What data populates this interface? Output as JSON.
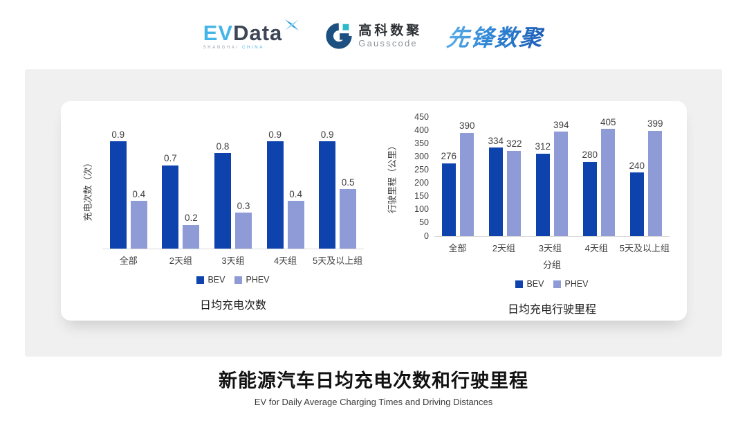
{
  "header": {
    "evdata": {
      "ev": "EV",
      "data": "Data",
      "tagline_left": "SHANGHAI",
      "tagline_right": "CHINA"
    },
    "gausscode": {
      "cn": "高科数聚",
      "en": "Gausscode"
    },
    "xianfeng": "先锋数聚"
  },
  "colors": {
    "bev": "#0e43ae",
    "phev": "#8f9bd6"
  },
  "chart_data": [
    {
      "type": "bar",
      "title": "日均充电次数",
      "ylabel": "充电次数（次）",
      "xlabel": "",
      "categories": [
        "全部",
        "2天组",
        "3天组",
        "4天组",
        "5天及以上组"
      ],
      "series": [
        {
          "name": "BEV",
          "values": [
            0.9,
            0.7,
            0.8,
            0.9,
            0.9
          ]
        },
        {
          "name": "PHEV",
          "values": [
            0.4,
            0.2,
            0.3,
            0.4,
            0.5
          ]
        }
      ],
      "ylim": [
        0,
        1.0
      ],
      "grid": false,
      "legend_position": "bottom",
      "value_labels": true
    },
    {
      "type": "bar",
      "title": "日均充电行驶里程",
      "ylabel": "行驶里程（公里）",
      "xlabel": "分组",
      "categories": [
        "全部",
        "2天组",
        "3天组",
        "4天组",
        "5天及以上组"
      ],
      "series": [
        {
          "name": "BEV",
          "values": [
            276,
            334,
            312,
            280,
            240
          ]
        },
        {
          "name": "PHEV",
          "values": [
            390,
            322,
            394,
            405,
            399
          ]
        }
      ],
      "ylim": [
        0,
        450
      ],
      "yticks": [
        0,
        50,
        100,
        150,
        200,
        250,
        300,
        350,
        400,
        450
      ],
      "grid": false,
      "legend_position": "bottom",
      "value_labels": true
    }
  ],
  "footer": {
    "title": "新能源汽车日均充电次数和行驶里程",
    "subtitle": "EV for Daily Average Charging Times and Driving Distances"
  }
}
